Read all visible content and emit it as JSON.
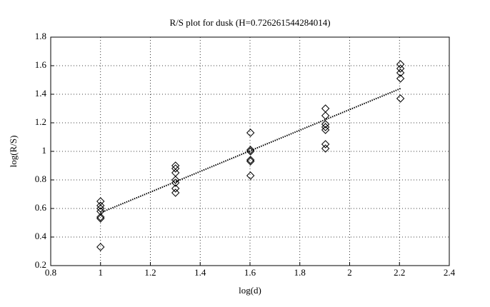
{
  "chart_data": {
    "type": "scatter",
    "title": "R/S plot for dusk (H=0.726261544284014)",
    "x_label": "log(d)",
    "y_label": "log(R/S)",
    "xlim": [
      0.8,
      2.4
    ],
    "xticks": [
      0.8,
      1,
      1.2,
      1.4,
      1.6,
      1.8,
      2,
      2.2,
      2.4
    ],
    "ylim": [
      0.2,
      1.8
    ],
    "yticks": [
      0.2,
      0.4,
      0.6,
      0.8,
      1,
      1.2,
      1.4,
      1.6,
      1.8
    ],
    "grid": true,
    "series": [
      {
        "color": "#000000",
        "marker": "diamond",
        "x": [
          1,
          1,
          1,
          1,
          1,
          1,
          1,
          1.301,
          1.301,
          1.301,
          1.301,
          1.301,
          1.301,
          1.301,
          1.602,
          1.602,
          1.602,
          1.602,
          1.602,
          1.602,
          1.903,
          1.903,
          1.903,
          1.903,
          1.903,
          1.903,
          1.903,
          2.204,
          2.204,
          2.204,
          2.204,
          2.204
        ],
        "values": [
          0.65,
          0.62,
          0.6,
          0.58,
          0.54,
          0.53,
          0.33,
          0.9,
          0.88,
          0.85,
          0.8,
          0.78,
          0.74,
          0.71,
          1.13,
          1.01,
          1.0,
          0.94,
          0.93,
          0.83,
          1.3,
          1.25,
          1.19,
          1.17,
          1.15,
          1.05,
          1.02,
          1.61,
          1.58,
          1.55,
          1.51,
          1.37
        ]
      }
    ],
    "fit_line": {
      "color": "#000000",
      "x": [
        1,
        2.204
      ],
      "values": [
        0.57,
        1.44
      ]
    }
  }
}
